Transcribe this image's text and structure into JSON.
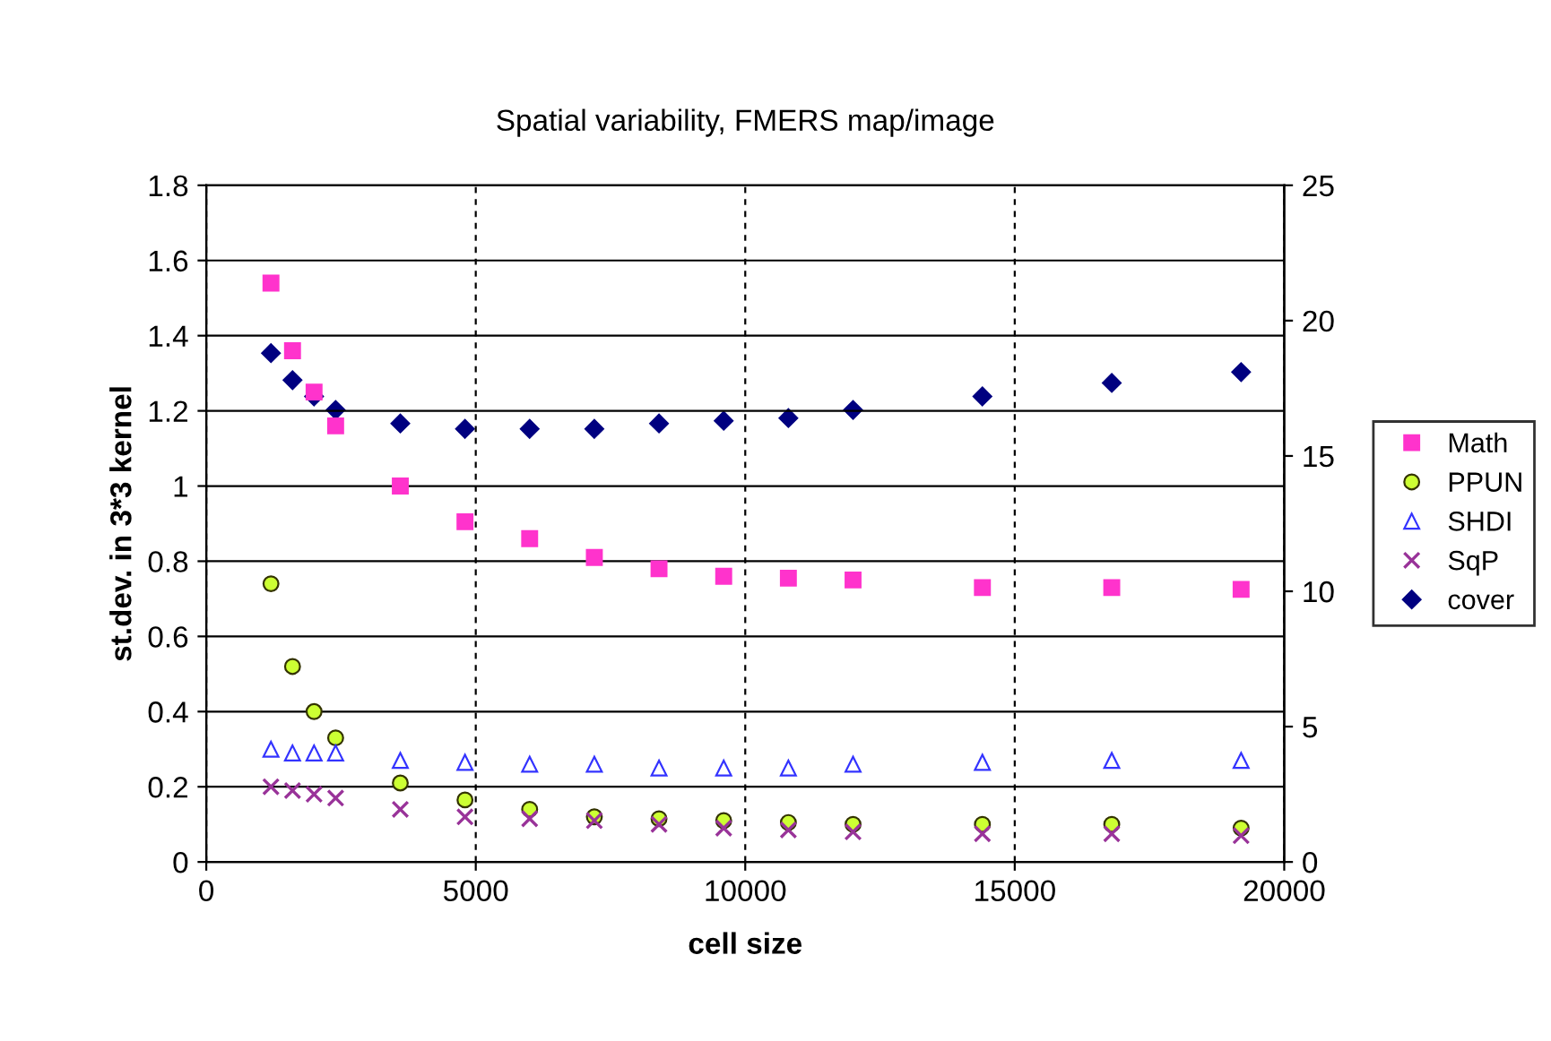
{
  "chart_data": {
    "type": "scatter",
    "title": "Spatial variability, FMERS map/image",
    "xlabel": "cell size",
    "ylabel": "st.dev. in 3*3 kernel",
    "x": [
      1200,
      1600,
      2000,
      2400,
      3600,
      4800,
      6000,
      7200,
      8400,
      9600,
      10800,
      12000,
      14400,
      16800,
      19200
    ],
    "xlim": [
      0,
      20000
    ],
    "xticks": [
      0,
      5000,
      10000,
      15000,
      20000
    ],
    "ylim": [
      0,
      1.8
    ],
    "yticks": [
      0,
      0.2,
      0.4,
      0.6,
      0.8,
      1,
      1.2,
      1.4,
      1.6,
      1.8
    ],
    "y2lim": [
      0,
      25
    ],
    "y2ticks": [
      0,
      5,
      10,
      15,
      20,
      25
    ],
    "grid": true,
    "legend": "right",
    "series": [
      {
        "name": "Math",
        "color": "#ff33cc",
        "marker": "square",
        "values": [
          1.54,
          1.36,
          1.25,
          1.16,
          1.0,
          0.905,
          0.86,
          0.81,
          0.78,
          0.76,
          0.755,
          0.75,
          0.73,
          0.73,
          0.725
        ]
      },
      {
        "name": "PPUN",
        "color": "#ccff33",
        "marker": "circle",
        "values": [
          0.74,
          0.52,
          0.4,
          0.33,
          0.21,
          0.165,
          0.14,
          0.12,
          0.115,
          0.11,
          0.105,
          0.1,
          0.1,
          0.1,
          0.09
        ]
      },
      {
        "name": "SHDI",
        "color": "#3333ff",
        "marker": "triangle",
        "values": [
          0.3,
          0.29,
          0.29,
          0.29,
          0.27,
          0.265,
          0.26,
          0.26,
          0.25,
          0.25,
          0.25,
          0.26,
          0.265,
          0.27,
          0.27
        ]
      },
      {
        "name": "SqP",
        "color": "#993399",
        "marker": "cross",
        "values": [
          0.2,
          0.19,
          0.18,
          0.17,
          0.14,
          0.12,
          0.115,
          0.11,
          0.1,
          0.09,
          0.085,
          0.08,
          0.075,
          0.075,
          0.07
        ]
      },
      {
        "name": "cover",
        "color": "#000080",
        "marker": "diamond",
        "axis": "y2",
        "values": [
          18.8,
          17.8,
          17.2,
          16.7,
          16.2,
          16.0,
          16.0,
          16.0,
          16.2,
          16.3,
          16.4,
          16.7,
          17.2,
          17.7,
          18.1
        ]
      }
    ]
  }
}
